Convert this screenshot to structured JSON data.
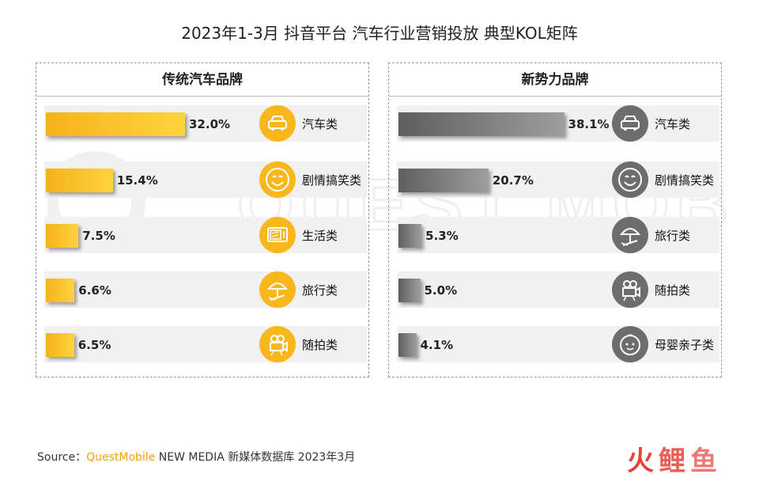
{
  "title": "2023年1-3月 抖音平台 汽车行业营销投放 典型KOL矩阵",
  "source": {
    "prefix": "Source：",
    "brand": "QuestMobile",
    "suffix": " NEW MEDIA 新媒体数据库 2023年3月"
  },
  "logo": [
    "火",
    "鲤",
    "鱼"
  ],
  "colors": {
    "traditional": "#f8b71c",
    "new": "#6d6d6d"
  },
  "chart_data": [
    {
      "type": "bar",
      "title": "传统汽车品牌",
      "categories": [
        "汽车类",
        "剧情搞笑类",
        "生活类",
        "旅行类",
        "随拍类"
      ],
      "values": [
        32.0,
        15.4,
        7.5,
        6.6,
        6.5
      ],
      "labels": [
        "32.0%",
        "15.4%",
        "7.5%",
        "6.6%",
        "6.5%"
      ],
      "icons": [
        "car-icon",
        "smile-icon",
        "microwave-icon",
        "beach-umbrella-icon",
        "camera-icon"
      ],
      "unit": "%"
    },
    {
      "type": "bar",
      "title": "新势力品牌",
      "categories": [
        "汽车类",
        "剧情搞笑类",
        "旅行类",
        "随拍类",
        "母婴亲子类"
      ],
      "values": [
        38.1,
        20.7,
        5.3,
        5.0,
        4.1
      ],
      "labels": [
        "38.1%",
        "20.7%",
        "5.3%",
        "5.0%",
        "4.1%"
      ],
      "icons": [
        "car-icon",
        "smile-icon",
        "beach-umbrella-icon",
        "camera-icon",
        "baby-icon"
      ],
      "unit": "%"
    }
  ]
}
